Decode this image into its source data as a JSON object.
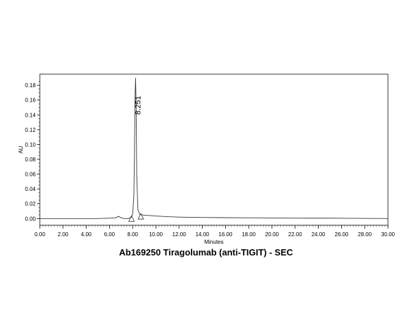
{
  "chart_data": {
    "type": "line",
    "title": "Ab169250 Tiragolumab (anti-TIGIT) - SEC",
    "xlabel": "Minutes",
    "ylabel": "AU",
    "xlim": [
      0,
      30
    ],
    "ylim": [
      -0.009,
      0.195
    ],
    "x_ticks": [
      "0.00",
      "2.00",
      "4.00",
      "6.00",
      "8.00",
      "10.00",
      "12.00",
      "14.00",
      "16.00",
      "18.00",
      "20.00",
      "22.00",
      "24.00",
      "26.00",
      "28.00",
      "30.00"
    ],
    "y_ticks": [
      "0.00",
      "0.02",
      "0.04",
      "0.06",
      "0.08",
      "0.10",
      "0.12",
      "0.14",
      "0.16",
      "0.18"
    ],
    "grid": false,
    "series": [
      {
        "x": [
          0,
          5,
          6.5,
          6.8,
          7.0,
          7.3,
          7.6,
          7.9,
          8.0,
          8.1,
          8.15,
          8.2,
          8.251,
          8.3,
          8.35,
          8.45,
          8.6,
          8.8,
          9.0,
          9.5,
          10,
          11,
          12,
          14,
          16,
          18,
          20,
          22,
          24,
          26,
          28,
          29.5,
          30
        ],
        "y": [
          0.0,
          0.0,
          0.0008,
          0.003,
          0.001,
          0.0,
          0.0,
          0.002,
          0.006,
          0.03,
          0.08,
          0.16,
          0.19,
          0.15,
          0.06,
          0.012,
          0.006,
          0.005,
          0.0045,
          0.004,
          0.0035,
          0.0025,
          0.002,
          0.0015,
          0.0012,
          0.001,
          0.0008,
          0.0006,
          0.0005,
          0.0004,
          0.0002,
          0.0001,
          0.0
        ]
      }
    ],
    "peak_annotation": {
      "label": "8.251",
      "x": 8.251,
      "y": 0.19
    },
    "integration_markers": [
      {
        "x": 7.9,
        "y": 0.0
      },
      {
        "x": 8.7,
        "y": 0.003
      }
    ]
  }
}
